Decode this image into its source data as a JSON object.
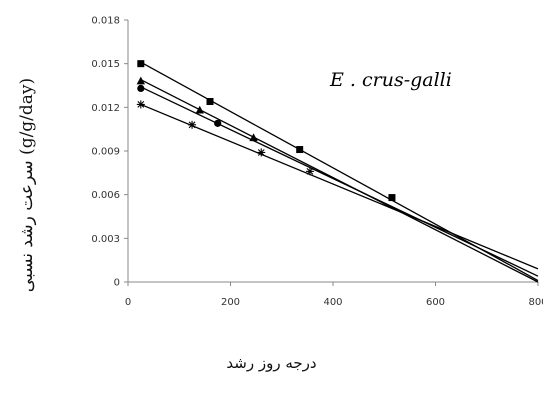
{
  "chart_data": {
    "type": "line",
    "title": "",
    "xlabel": "درجه روز رشد",
    "ylabel": "سرعت رشد نسبی (g/g/day)",
    "annotation": "E . crus-galli",
    "xlim": [
      0,
      800
    ],
    "ylim": [
      0,
      0.018
    ],
    "x_ticks": [
      0,
      200,
      400,
      600,
      800
    ],
    "x_tick_labels": [
      "0",
      "200",
      "400",
      "600",
      "800"
    ],
    "y_ticks": [
      0,
      0.003,
      0.006,
      0.009,
      0.012,
      0.015,
      0.018
    ],
    "y_tick_labels": [
      "0",
      "0.003",
      "0.006",
      "0.009",
      "0.012",
      "0.015",
      "0.018"
    ],
    "grid": false,
    "legend": "none",
    "series": [
      {
        "marker": "square",
        "points": [
          [
            25,
            0.015
          ],
          [
            160,
            0.0124
          ],
          [
            335,
            0.0091
          ],
          [
            515,
            0.0058
          ]
        ],
        "trend_line": [
          [
            25,
            0.0151
          ],
          [
            800,
            0.0001
          ]
        ]
      },
      {
        "marker": "triangle",
        "points": [
          [
            25,
            0.0138
          ],
          [
            140,
            0.0118
          ],
          [
            245,
            0.0099
          ]
        ],
        "trend_line": [
          [
            25,
            0.0139
          ],
          [
            800,
            0.0
          ]
        ]
      },
      {
        "marker": "circle",
        "points": [
          [
            25,
            0.0133
          ],
          [
            175,
            0.0109
          ]
        ],
        "trend_line": [
          [
            25,
            0.0134
          ],
          [
            800,
            0.0004
          ]
        ]
      },
      {
        "marker": "star",
        "points": [
          [
            25,
            0.0122
          ],
          [
            125,
            0.0108
          ],
          [
            260,
            0.0089
          ],
          [
            355,
            0.0076
          ]
        ],
        "trend_line": [
          [
            25,
            0.0122
          ],
          [
            800,
            0.0009
          ]
        ]
      }
    ]
  }
}
